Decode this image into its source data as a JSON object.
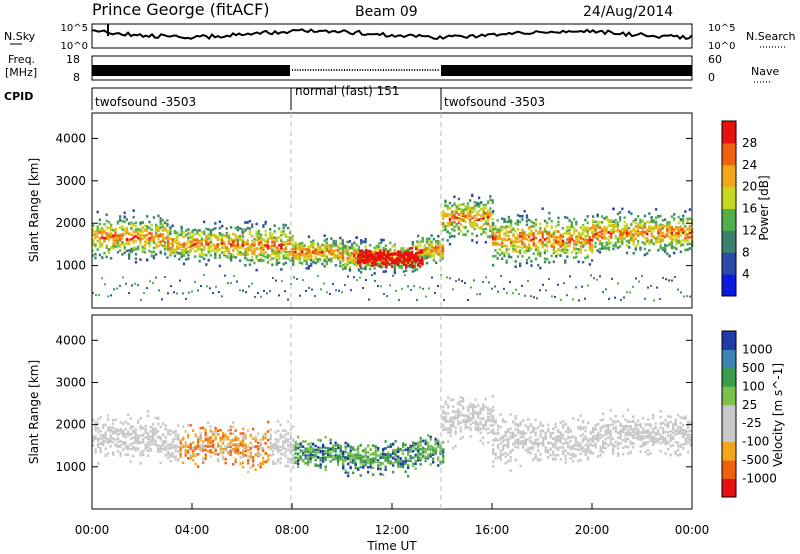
{
  "header": {
    "station": "Prince George (fitACF)",
    "beam": "Beam 09",
    "date": "24/Aug/2014"
  },
  "panels": {
    "nsky": {
      "label": "N.Sky",
      "ticks_left": [
        "10^5",
        "10^0"
      ],
      "ticks_right": [
        "10^5",
        "10^0"
      ],
      "right_label": "N.Search"
    },
    "freq": {
      "label_top": "Freq.",
      "label_bottom": "[MHz]",
      "ticks_left": [
        "18",
        "8"
      ],
      "ticks_right": [
        "60",
        "0"
      ],
      "right_label": "Nave"
    },
    "cpid": {
      "label": "CPID",
      "segments": [
        {
          "name": "twofsound -3503",
          "start": 0,
          "end": 8
        },
        {
          "name": "normal (fast) 151",
          "start": 8,
          "end": 14
        },
        {
          "name": "twofsound -3503",
          "start": 14,
          "end": 24
        }
      ]
    }
  },
  "chart_data": [
    {
      "type": "heatmap",
      "title": "",
      "xlabel": "Time UT",
      "ylabel": "Slant Range [km]",
      "xlim": [
        0,
        24
      ],
      "ylim": [
        0,
        4600
      ],
      "yticks": [
        "1000",
        "2000",
        "3000",
        "4000"
      ],
      "colorbar": {
        "label": "Power [dB]",
        "ticks": [
          "4",
          "8",
          "12",
          "16",
          "20",
          "24",
          "28"
        ],
        "colors": [
          "#0a1ae0",
          "#2c48a8",
          "#3c7f6e",
          "#52b04a",
          "#c8d81c",
          "#f0a818",
          "#f06010",
          "#e81010"
        ]
      },
      "scatter_bands": [
        {
          "start": 0,
          "end": 3,
          "center": 1700,
          "width": 700
        },
        {
          "start": 3,
          "end": 6,
          "center": 1550,
          "width": 600
        },
        {
          "start": 6,
          "end": 8,
          "center": 1500,
          "width": 700
        },
        {
          "start": 8,
          "end": 10,
          "center": 1350,
          "width": 450
        },
        {
          "start": 10,
          "end": 13,
          "center": 1250,
          "width": 500
        },
        {
          "start": 13,
          "end": 14,
          "center": 1400,
          "width": 450
        },
        {
          "start": 14,
          "end": 16,
          "center": 2150,
          "width": 700
        },
        {
          "start": 16,
          "end": 20,
          "center": 1650,
          "width": 800
        },
        {
          "start": 20,
          "end": 24,
          "center": 1800,
          "width": 650
        }
      ]
    },
    {
      "type": "heatmap",
      "title": "",
      "xlabel": "Time UT",
      "ylabel": "Slant Range [km]",
      "xlim": [
        0,
        24
      ],
      "ylim": [
        0,
        4600
      ],
      "yticks": [
        "1000",
        "2000",
        "3000",
        "4000"
      ],
      "xticks": [
        "00:00",
        "04:00",
        "08:00",
        "12:00",
        "16:00",
        "20:00",
        "00:00"
      ],
      "colorbar": {
        "label": "Velocity [m s^-1]",
        "ticks": [
          "1000",
          "500",
          "100",
          "25",
          "-25",
          "-100",
          "-500",
          "-1000"
        ],
        "colors": [
          "#1c3ca8",
          "#3c84b4",
          "#389c48",
          "#7cc04c",
          "#c8c8c8",
          "#c8c8c8",
          "#f0a818",
          "#f06010",
          "#e81010"
        ]
      }
    }
  ]
}
